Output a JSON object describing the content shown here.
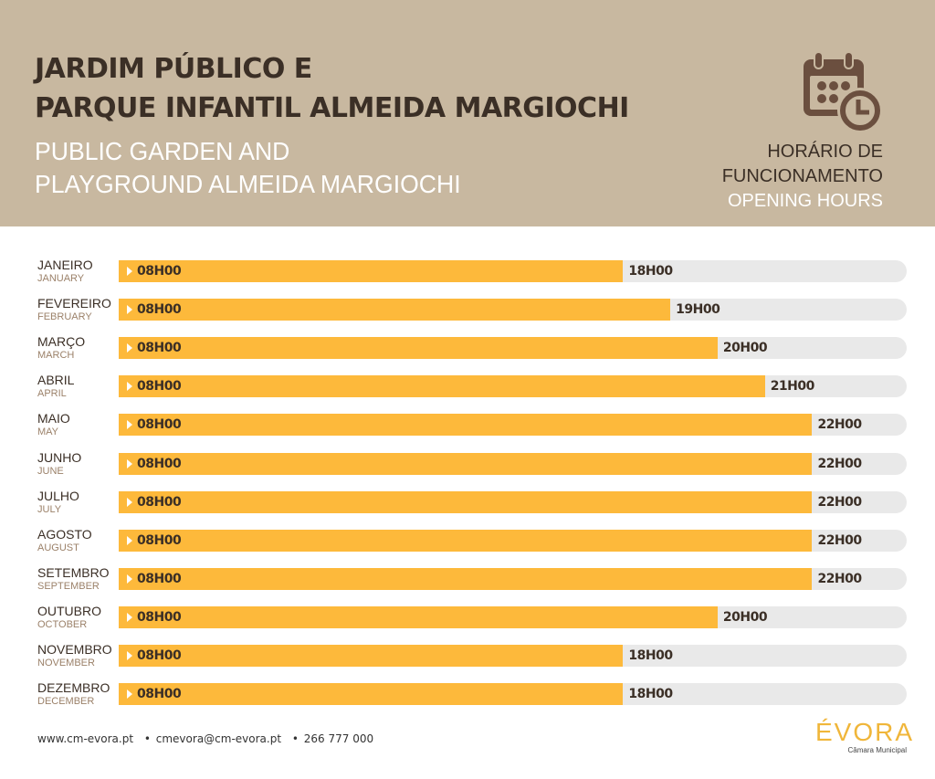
{
  "header": {
    "title_line1": "JARDIM PÚBLICO E",
    "title_line2": "PARQUE INFANTIL ALMEIDA MARGIOCHI",
    "subtitle_line1": "PUBLIC GARDEN AND",
    "subtitle_line2": "PLAYGROUND ALMEIDA MARGIOCHI",
    "icon": "calendar-clock-icon",
    "hours_pt_line1": "HORÁRIO DE",
    "hours_pt_line2": "FUNCIONAMENTO",
    "hours_en": "OPENING HOURS"
  },
  "colors": {
    "header_bg": "#c8b8a0",
    "dark_brown": "#3b2f26",
    "bar_fill": "#fdb93b",
    "bar_track": "#e9e9e9",
    "logo": "#f0b63a"
  },
  "chart_data": {
    "type": "bar",
    "orientation": "horizontal",
    "title": "Horário de Funcionamento / Opening Hours",
    "xlabel": "",
    "ylabel": "",
    "x_range_hours": [
      7.33,
      24
    ],
    "grid": false,
    "legend": "none",
    "categories": [
      "JANEIRO",
      "FEVEREIRO",
      "MARÇO",
      "ABRIL",
      "MAIO",
      "JUNHO",
      "JULHO",
      "AGOSTO",
      "SETEMBRO",
      "OUTUBRO",
      "NOVEMBRO",
      "DEZEMBRO"
    ],
    "categories_en": [
      "JANUARY",
      "FEBRUARY",
      "MARCH",
      "APRIL",
      "MAY",
      "JUNE",
      "JULY",
      "AUGUST",
      "SEPTEMBER",
      "OCTOBER",
      "NOVEMBER",
      "DECEMBER"
    ],
    "open_labels": [
      "08H00",
      "08H00",
      "08H00",
      "08H00",
      "08H00",
      "08H00",
      "08H00",
      "08H00",
      "08H00",
      "08H00",
      "08H00",
      "08H00"
    ],
    "close_labels": [
      "18H00",
      "19H00",
      "20H00",
      "21H00",
      "22H00",
      "22H00",
      "22H00",
      "22H00",
      "22H00",
      "20H00",
      "18H00",
      "18H00"
    ],
    "series": [
      {
        "name": "open",
        "values": [
          8,
          8,
          8,
          8,
          8,
          8,
          8,
          8,
          8,
          8,
          8,
          8
        ]
      },
      {
        "name": "close",
        "values": [
          18,
          19,
          20,
          21,
          22,
          22,
          22,
          22,
          22,
          20,
          18,
          18
        ]
      }
    ]
  },
  "footer": {
    "website": "www.cm-evora.pt",
    "email": "cmevora@cm-evora.pt",
    "phone": "266 777 000",
    "separator": "•"
  },
  "logo": {
    "wordmark": "ÉVORA",
    "subtitle": "Câmara Municipal"
  }
}
